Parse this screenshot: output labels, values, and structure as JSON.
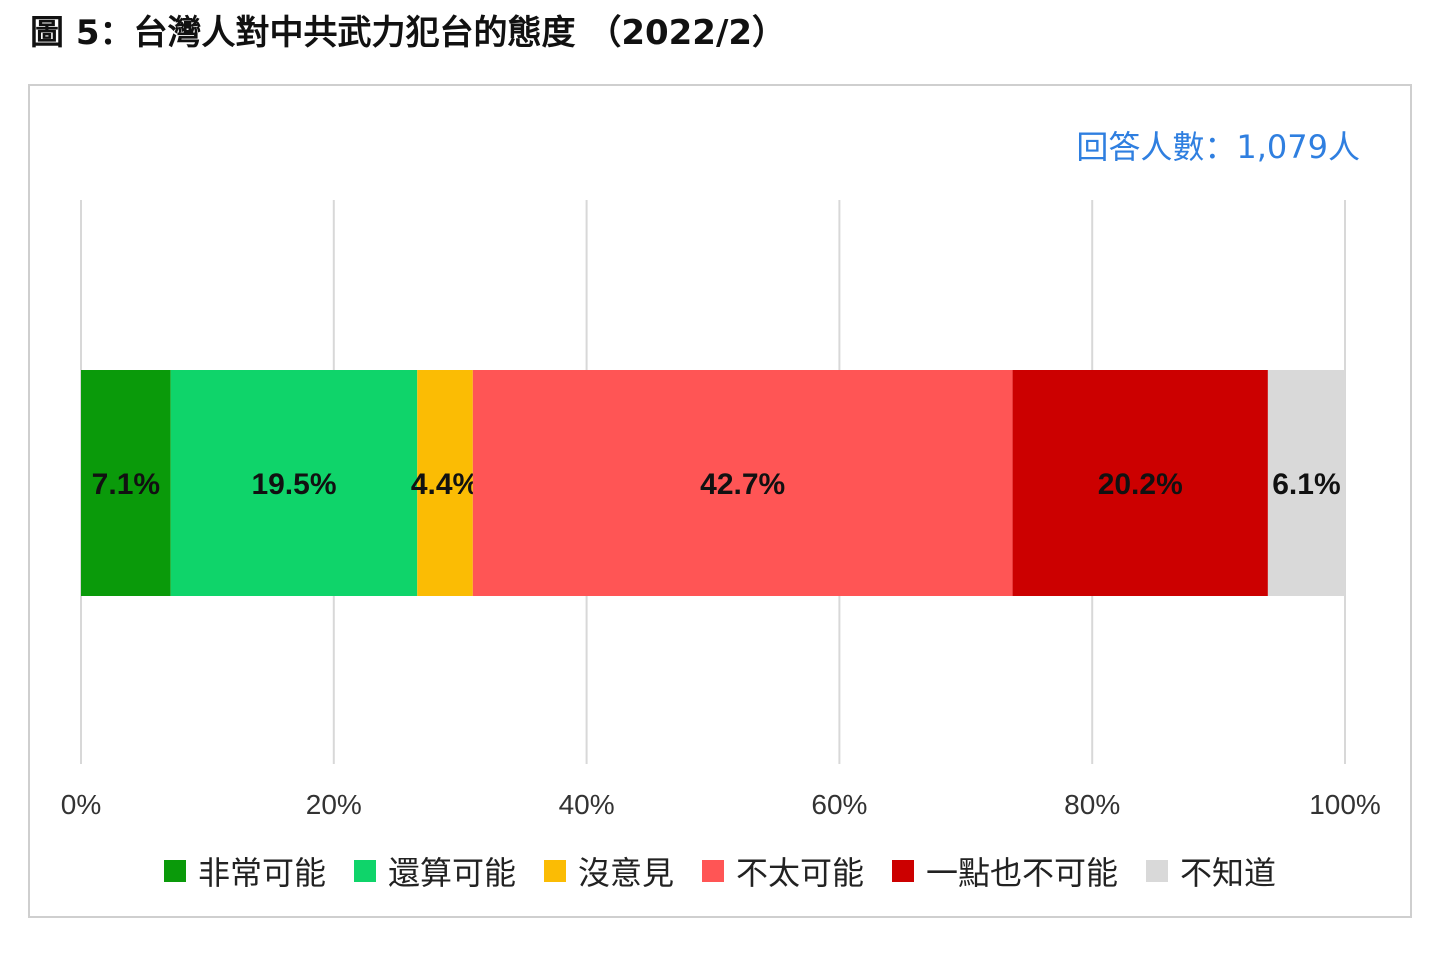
{
  "figure_title": "圖 5：台灣人對中共武力犯台的態度 （2022/2）",
  "respondents_label": "回答人數：1,079人",
  "chart_data": {
    "type": "bar",
    "orientation": "horizontal",
    "stacked": true,
    "categories": [
      ""
    ],
    "xlim": [
      0,
      100
    ],
    "x_ticks": [
      "0%",
      "20%",
      "40%",
      "60%",
      "80%",
      "100%"
    ],
    "grid": "vertical",
    "legend_position": "bottom",
    "series": [
      {
        "name": "非常可能",
        "values": [
          7.1
        ],
        "label": "7.1%",
        "color": "#0a9a0a",
        "label_color": "#111111"
      },
      {
        "name": "還算可能",
        "values": [
          19.5
        ],
        "label": "19.5%",
        "color": "#0fd46a",
        "label_color": "#111111"
      },
      {
        "name": "沒意見",
        "values": [
          4.4
        ],
        "label": "4.4%",
        "color": "#fbbc04",
        "label_color": "#111111"
      },
      {
        "name": "不太可能",
        "values": [
          42.7
        ],
        "label": "42.7%",
        "color": "#ff5555",
        "label_color": "#111111"
      },
      {
        "name": "一點也不可能",
        "values": [
          20.2
        ],
        "label": "20.2%",
        "color": "#cc0000",
        "label_color": "#111111"
      },
      {
        "name": "不知道",
        "values": [
          6.1
        ],
        "label": "6.1%",
        "color": "#d9d9d9",
        "label_color": "#111111"
      }
    ]
  }
}
